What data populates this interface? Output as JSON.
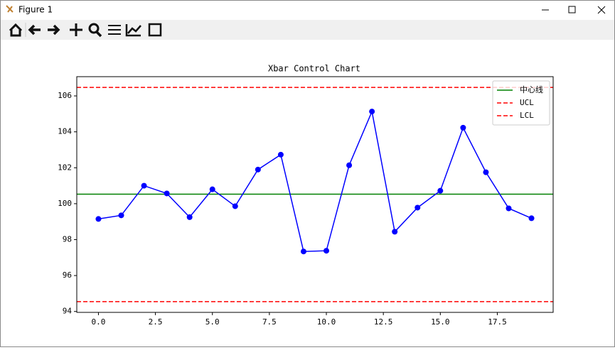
{
  "window": {
    "title": "Figure 1"
  },
  "chart_data": {
    "type": "line",
    "title": "Xbar Control Chart",
    "x": [
      0,
      1,
      2,
      3,
      4,
      5,
      6,
      7,
      8,
      9,
      10,
      11,
      12,
      13,
      14,
      15,
      16,
      17,
      18,
      19
    ],
    "series": [
      {
        "color": "#0000ff",
        "marker": "circle",
        "values": [
          99.15,
          99.35,
          101.0,
          100.57,
          99.25,
          100.8,
          99.86,
          101.9,
          102.73,
          97.34,
          97.38,
          102.14,
          105.13,
          98.44,
          99.78,
          100.72,
          104.23,
          101.75,
          99.74,
          99.19
        ]
      }
    ],
    "hlines": [
      {
        "name": "中心线",
        "color": "#008000",
        "style": "solid",
        "value": 100.53
      },
      {
        "name": "UCL",
        "color": "#ff0000",
        "style": "dashed",
        "value": 106.47
      },
      {
        "name": "LCL",
        "color": "#ff0000",
        "style": "dashed",
        "value": 94.55
      }
    ],
    "xlim": [
      -0.95,
      19.95
    ],
    "xticks": [
      {
        "value": 0,
        "label": "0.0"
      },
      2.5,
      {
        "value": 5,
        "label": "5.0"
      },
      7.5,
      {
        "value": 10,
        "label": "10.0"
      },
      12.5,
      {
        "value": 15,
        "label": "15.0"
      },
      17.5
    ],
    "ylim": [
      93.95,
      107.07
    ],
    "yticks": [
      94,
      96,
      98,
      100,
      102,
      104,
      106
    ],
    "legend": "upper right",
    "grid": false
  }
}
